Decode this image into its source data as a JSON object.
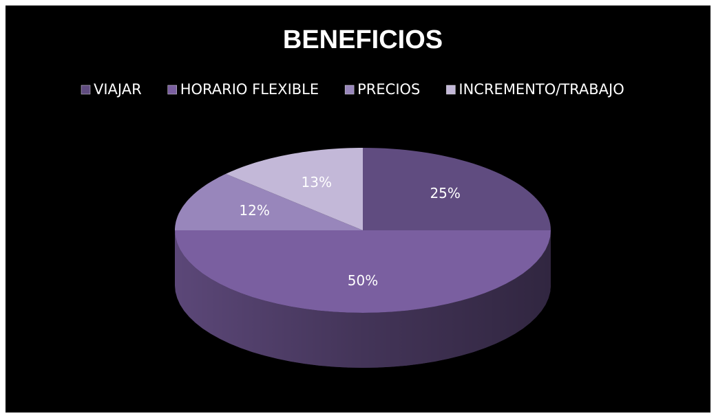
{
  "chart_data": {
    "type": "pie",
    "title": "BENEFICIOS",
    "categories": [
      "VIAJAR",
      "HORARIO FLEXIBLE",
      "PRECIOS",
      "INCREMENTO/TRABAJO"
    ],
    "values": [
      25,
      50,
      12,
      13
    ],
    "value_labels": [
      "25%",
      "50%",
      "12%",
      "13%"
    ],
    "colors": [
      "#604c80",
      "#7a5fa0",
      "#9886bb",
      "#c3b8d8"
    ],
    "legend": "top"
  }
}
